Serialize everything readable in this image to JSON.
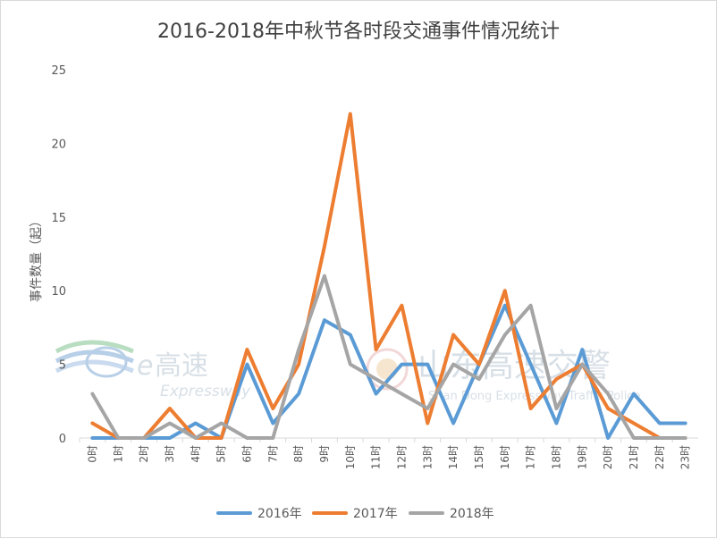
{
  "chart_data": {
    "type": "line",
    "title": "2016-2018年中秋节各时段交通事件情况统计",
    "xlabel": "",
    "ylabel": "事件数量（起）",
    "ylim": [
      0,
      25
    ],
    "yticks": [
      0,
      5,
      10,
      15,
      20,
      25
    ],
    "grid": false,
    "legend_position": "bottom",
    "categories": [
      "0时",
      "1时",
      "2时",
      "3时",
      "4时",
      "5时",
      "6时",
      "7时",
      "8时",
      "9时",
      "10时",
      "11时",
      "12时",
      "13时",
      "14时",
      "15时",
      "16时",
      "17时",
      "18时",
      "19时",
      "20时",
      "21时",
      "22时",
      "23时"
    ],
    "series": [
      {
        "name": "2016年",
        "color": "#5b9bd5",
        "values": [
          0,
          0,
          0,
          0,
          1,
          0,
          5,
          1,
          3,
          8,
          7,
          3,
          5,
          5,
          1,
          5,
          9,
          5,
          1,
          6,
          0,
          3,
          1,
          1
        ]
      },
      {
        "name": "2017年",
        "color": "#ed7d31",
        "values": [
          1,
          0,
          0,
          2,
          0,
          0,
          6,
          2,
          5,
          13,
          22,
          6,
          9,
          1,
          7,
          5,
          10,
          2,
          4,
          5,
          2,
          1,
          0,
          0
        ]
      },
      {
        "name": "2018年",
        "color": "#a5a5a5",
        "values": [
          3,
          0,
          0,
          1,
          0,
          1,
          0,
          0,
          6,
          11,
          5,
          4,
          3,
          2,
          5,
          4,
          7,
          9,
          2,
          5,
          3,
          0,
          0,
          0
        ]
      }
    ]
  },
  "watermarks": {
    "left_logo_text": "高速",
    "left_logo_sub": "Expressway",
    "right_logo_text": "山东高速交警",
    "right_logo_sub": "Shan Dong Expressway Traffic Police"
  }
}
